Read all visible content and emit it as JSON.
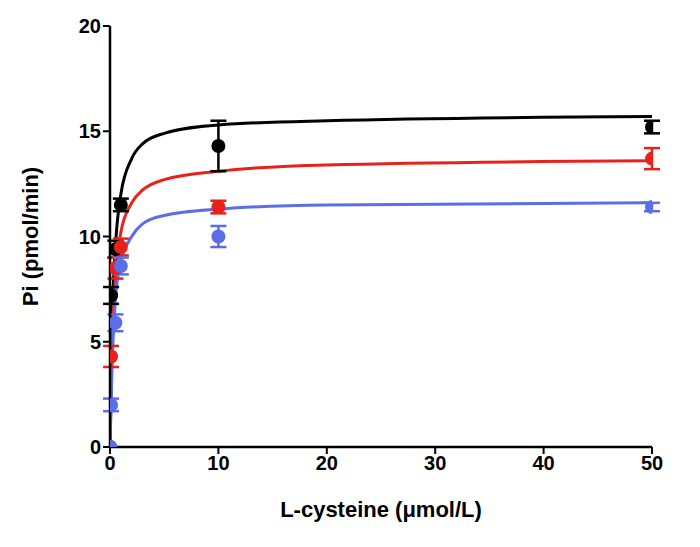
{
  "chart_data": {
    "type": "scatter",
    "x_label": "L-cysteine (μmol/L)",
    "y_label": "Pi (pmol/min)",
    "xlim": [
      0,
      50
    ],
    "xticks": [
      0,
      10,
      20,
      30,
      40,
      50
    ],
    "ylim": [
      0,
      20
    ],
    "yticks": [
      0,
      5,
      10,
      15,
      20
    ],
    "grid": false,
    "marker": "circle",
    "series": [
      {
        "color": "#000000",
        "x": [
          0,
          0.1,
          0.5,
          1,
          10,
          50
        ],
        "values": [
          0,
          7.2,
          9.4,
          11.5,
          14.3,
          15.2
        ],
        "error": [
          0,
          0.4,
          0.4,
          0.3,
          1.2,
          0.3
        ],
        "fit_x": [
          0,
          0.2,
          0.5,
          1,
          2,
          3,
          5,
          10,
          20,
          50
        ],
        "fit_values": [
          0,
          6,
          9.5,
          12,
          13.7,
          14.4,
          14.9,
          15.3,
          15.5,
          15.7
        ]
      },
      {
        "color": "#e8221b",
        "x": [
          0,
          0.1,
          0.5,
          1,
          10,
          50
        ],
        "values": [
          0,
          4.3,
          8.5,
          9.5,
          11.4,
          13.7
        ],
        "error": [
          0,
          0.5,
          0.5,
          0.4,
          0.3,
          0.5
        ],
        "fit_x": [
          0,
          0.2,
          0.5,
          1,
          2,
          3,
          5,
          10,
          20,
          50
        ],
        "fit_values": [
          0,
          5,
          8,
          10.2,
          11.6,
          12.2,
          12.7,
          13.1,
          13.4,
          13.6
        ]
      },
      {
        "color": "#5b6ee8",
        "x": [
          0,
          0.1,
          0.5,
          1,
          10,
          50
        ],
        "values": [
          0,
          2,
          5.9,
          8.6,
          10,
          11.4
        ],
        "error": [
          0,
          0.3,
          0.4,
          0.4,
          0.5,
          0.2
        ],
        "fit_x": [
          0,
          0.2,
          0.5,
          1,
          2,
          3,
          5,
          10,
          20,
          50
        ],
        "fit_values": [
          0,
          4,
          7,
          8.8,
          10,
          10.6,
          11,
          11.3,
          11.5,
          11.6
        ]
      }
    ]
  }
}
